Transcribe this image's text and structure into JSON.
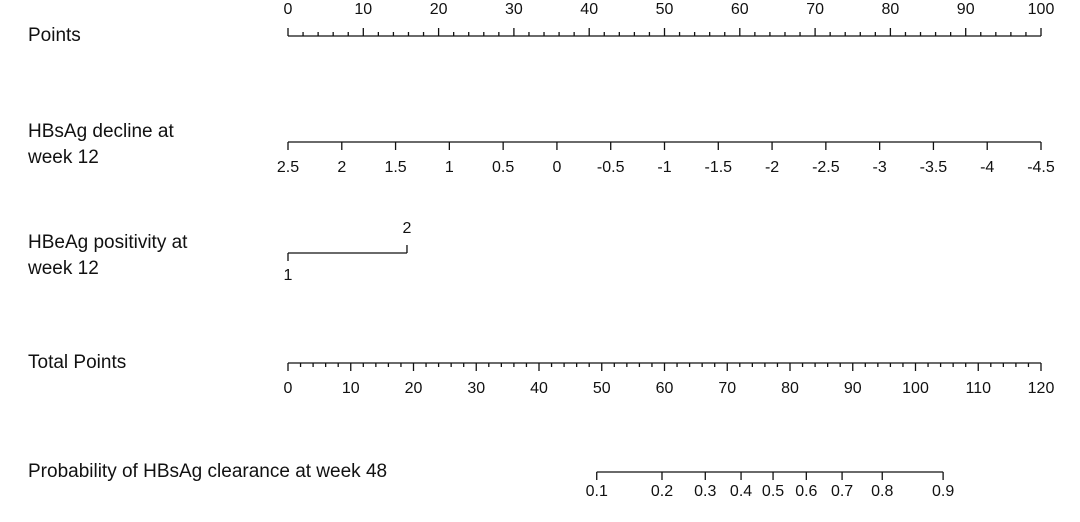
{
  "chart_data": {
    "type": "nomogram",
    "rows": [
      {
        "kind": "axis",
        "label": [
          "Points"
        ],
        "xlim": [
          0,
          100
        ],
        "xticks": [
          0,
          10,
          20,
          30,
          40,
          50,
          60,
          70,
          80,
          90,
          100
        ],
        "minor_ticks": [
          2,
          4,
          6,
          8,
          12,
          14,
          16,
          18,
          22,
          24,
          26,
          28,
          32,
          34,
          36,
          38,
          42,
          44,
          46,
          48,
          52,
          54,
          56,
          58,
          62,
          64,
          66,
          68,
          72,
          74,
          76,
          78,
          82,
          84,
          86,
          88,
          92,
          94,
          96,
          98
        ],
        "labels_above": true
      },
      {
        "kind": "axis",
        "label": [
          "HBsAg decline at",
          "week 12"
        ],
        "xlim": [
          2.5,
          -4.5
        ],
        "xticks": [
          2.5,
          2,
          1.5,
          1,
          0.5,
          0,
          -0.5,
          -1,
          -1.5,
          -2,
          -2.5,
          -3,
          -3.5,
          -4,
          -4.5
        ]
      },
      {
        "kind": "levels",
        "label": [
          "HBeAg positivity at",
          "week 12"
        ],
        "levels": [
          {
            "label": "1",
            "points": 0
          },
          {
            "label": "2",
            "points": 15.8
          }
        ]
      },
      {
        "kind": "axis",
        "label": [
          "Total Points"
        ],
        "xlim": [
          0,
          120
        ],
        "xticks": [
          0,
          10,
          20,
          30,
          40,
          50,
          60,
          70,
          80,
          90,
          100,
          110,
          120
        ],
        "minor_ticks": [
          2,
          4,
          6,
          8,
          12,
          14,
          16,
          18,
          22,
          24,
          26,
          28,
          32,
          34,
          36,
          38,
          42,
          44,
          46,
          48,
          52,
          54,
          56,
          58,
          62,
          64,
          66,
          68,
          72,
          74,
          76,
          78,
          82,
          84,
          86,
          88,
          92,
          94,
          96,
          98,
          102,
          104,
          106,
          108,
          112,
          114,
          116,
          118
        ]
      },
      {
        "kind": "probability",
        "label": [
          "Probability of HBsAg clearance at week 48"
        ],
        "xticks": [
          {
            "value": 0.1,
            "total_points": 49.2
          },
          {
            "value": 0.2,
            "total_points": 59.6
          },
          {
            "value": 0.3,
            "total_points": 66.5
          },
          {
            "value": 0.4,
            "total_points": 72.2
          },
          {
            "value": 0.5,
            "total_points": 77.3
          },
          {
            "value": 0.6,
            "total_points": 82.6
          },
          {
            "value": 0.7,
            "total_points": 88.3
          },
          {
            "value": 0.8,
            "total_points": 94.7
          },
          {
            "value": 0.9,
            "total_points": 104.4
          }
        ]
      }
    ]
  }
}
